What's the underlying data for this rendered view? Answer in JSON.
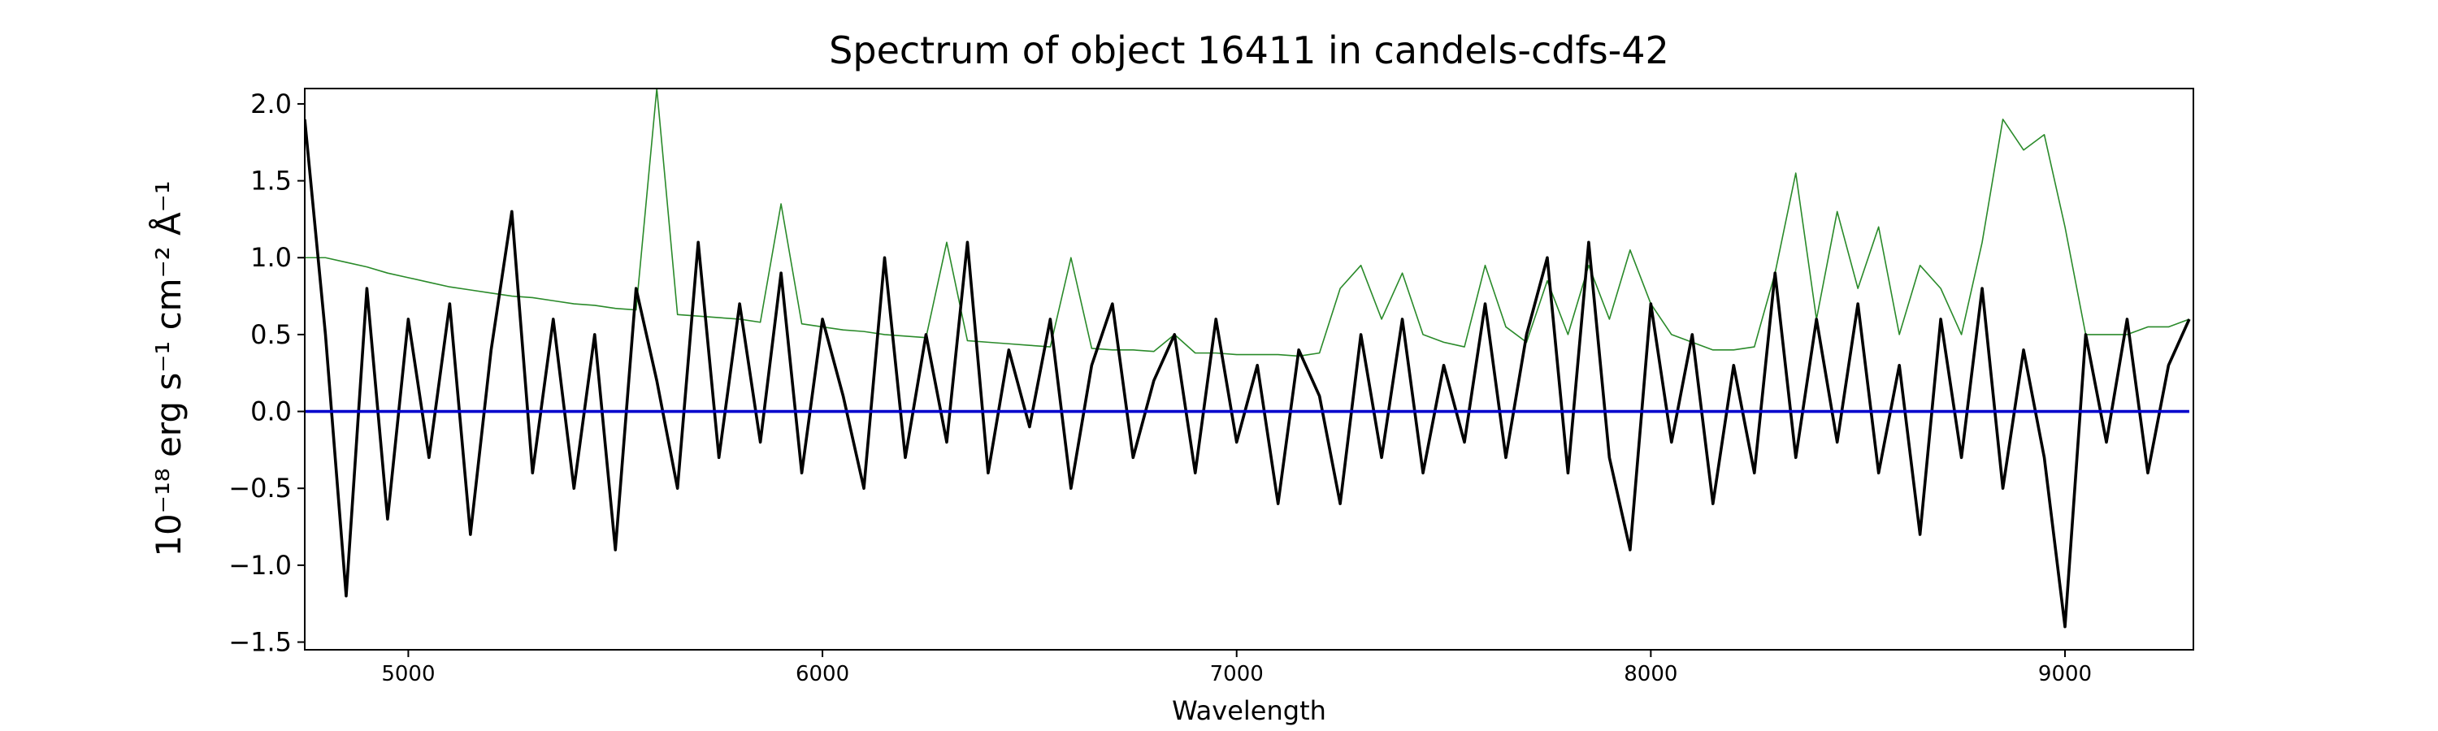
{
  "chart_data": {
    "type": "line",
    "title": "Spectrum of object 16411 in candels-cdfs-42",
    "x_label": "Wavelength",
    "y_label": "10⁻¹⁸ erg s⁻¹ cm⁻² Å⁻¹",
    "xlim": [
      4750,
      9310
    ],
    "ylim": [
      -1.55,
      2.1
    ],
    "xticks": [
      5000,
      6000,
      7000,
      8000,
      9000
    ],
    "yticks": [
      {
        "value": -1.5,
        "label": "−1.5"
      },
      {
        "value": -1.0,
        "label": "−1.0"
      },
      {
        "value": -0.5,
        "label": "−0.5"
      },
      {
        "value": 0,
        "label": "0.0"
      },
      0.5,
      {
        "value": 1.0,
        "label": "1.0"
      },
      1.5,
      {
        "value": 2.0,
        "label": "2.0"
      }
    ],
    "x": [
      4750,
      4800,
      4850,
      4900,
      4950,
      5000,
      5050,
      5100,
      5150,
      5200,
      5250,
      5300,
      5350,
      5400,
      5450,
      5500,
      5550,
      5600,
      5650,
      5700,
      5750,
      5800,
      5850,
      5900,
      5950,
      6000,
      6050,
      6100,
      6150,
      6200,
      6250,
      6300,
      6350,
      6400,
      6450,
      6500,
      6550,
      6600,
      6650,
      6700,
      6750,
      6800,
      6850,
      6900,
      6950,
      7000,
      7050,
      7100,
      7150,
      7200,
      7250,
      7300,
      7350,
      7400,
      7450,
      7500,
      7550,
      7600,
      7650,
      7700,
      7750,
      7800,
      7850,
      7900,
      7950,
      8000,
      8050,
      8100,
      8150,
      8200,
      8250,
      8300,
      8350,
      8400,
      8450,
      8500,
      8550,
      8600,
      8650,
      8700,
      8750,
      8800,
      8850,
      8900,
      8950,
      9000,
      9050,
      9100,
      9150,
      9200,
      9250,
      9300
    ],
    "series": [
      {
        "color": "#2a8a2a",
        "width": 1.6,
        "values": [
          1.0,
          1.0,
          0.97,
          0.94,
          0.9,
          0.87,
          0.84,
          0.81,
          0.79,
          0.77,
          0.75,
          0.74,
          0.72,
          0.7,
          0.69,
          0.67,
          0.66,
          2.1,
          0.63,
          0.62,
          0.61,
          0.6,
          0.58,
          1.35,
          0.57,
          0.55,
          0.53,
          0.52,
          0.5,
          0.49,
          0.48,
          1.1,
          0.46,
          0.45,
          0.44,
          0.43,
          0.42,
          1.0,
          0.41,
          0.4,
          0.4,
          0.39,
          0.5,
          0.38,
          0.38,
          0.37,
          0.37,
          0.37,
          0.36,
          0.38,
          0.8,
          0.95,
          0.6,
          0.9,
          0.5,
          0.45,
          0.42,
          0.95,
          0.55,
          0.45,
          0.85,
          0.5,
          0.95,
          0.6,
          1.05,
          0.7,
          0.5,
          0.45,
          0.4,
          0.4,
          0.42,
          0.9,
          1.55,
          0.6,
          1.3,
          0.8,
          1.2,
          0.5,
          0.95,
          0.8,
          0.5,
          1.1,
          1.9,
          1.7,
          1.8,
          1.2,
          0.5,
          0.5,
          0.5,
          0.55,
          0.55,
          0.6
        ]
      },
      {
        "color": "#000000",
        "width": 3.6,
        "values": [
          1.9,
          0.5,
          -1.2,
          0.8,
          -0.7,
          0.6,
          -0.3,
          0.7,
          -0.8,
          0.4,
          1.3,
          -0.4,
          0.6,
          -0.5,
          0.5,
          -0.9,
          0.8,
          0.2,
          -0.5,
          1.1,
          -0.3,
          0.7,
          -0.2,
          0.9,
          -0.4,
          0.6,
          0.1,
          -0.5,
          1.0,
          -0.3,
          0.5,
          -0.2,
          1.1,
          -0.4,
          0.4,
          -0.1,
          0.6,
          -0.5,
          0.3,
          0.7,
          -0.3,
          0.2,
          0.5,
          -0.4,
          0.6,
          -0.2,
          0.3,
          -0.6,
          0.4,
          0.1,
          -0.6,
          0.5,
          -0.3,
          0.6,
          -0.4,
          0.3,
          -0.2,
          0.7,
          -0.3,
          0.5,
          1.0,
          -0.4,
          1.1,
          -0.3,
          -0.9,
          0.7,
          -0.2,
          0.5,
          -0.6,
          0.3,
          -0.4,
          0.9,
          -0.3,
          0.6,
          -0.2,
          0.7,
          -0.4,
          0.3,
          -0.8,
          0.6,
          -0.3,
          0.8,
          -0.5,
          0.4,
          -0.3,
          -1.4,
          0.5,
          -0.2,
          0.6,
          -0.4,
          0.3,
          0.6
        ]
      },
      {
        "color": "#0000cc",
        "width": 3.6,
        "values": [
          0,
          0,
          0,
          0,
          0,
          0,
          0,
          0,
          0,
          0,
          0,
          0,
          0,
          0,
          0,
          0,
          0,
          0,
          0,
          0,
          0,
          0,
          0,
          0,
          0,
          0,
          0,
          0,
          0,
          0,
          0,
          0,
          0,
          0,
          0,
          0,
          0,
          0,
          0,
          0,
          0,
          0,
          0,
          0,
          0,
          0,
          0,
          0,
          0,
          0,
          0,
          0,
          0,
          0,
          0,
          0,
          0,
          0,
          0,
          0,
          0,
          0,
          0,
          0,
          0,
          0,
          0,
          0,
          0,
          0,
          0,
          0,
          0,
          0,
          0,
          0,
          0,
          0,
          0,
          0,
          0,
          0,
          0,
          0,
          0,
          0,
          0,
          0,
          0,
          0,
          0,
          0
        ]
      }
    ]
  }
}
